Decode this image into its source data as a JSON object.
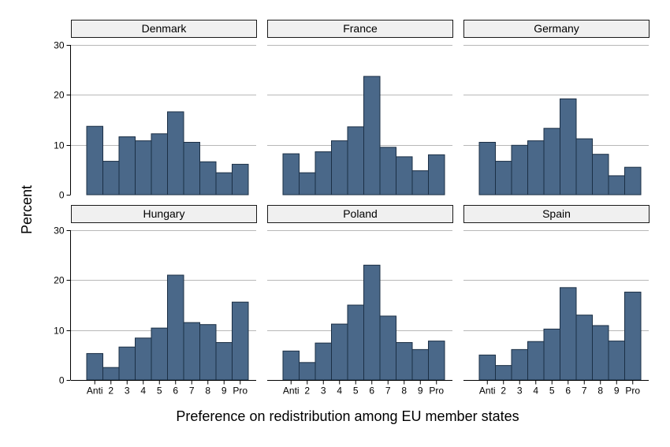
{
  "chart_data": {
    "type": "bar",
    "layout": "small-multiples 3x2",
    "xlabel": "Preference on redistribution among EU member states",
    "ylabel": "Percent",
    "categories": [
      "Anti",
      "2",
      "3",
      "4",
      "5",
      "6",
      "7",
      "8",
      "9",
      "Pro"
    ],
    "ylim": [
      0,
      30
    ],
    "yticks": [
      0,
      10,
      20,
      30
    ],
    "grid": true,
    "bar_color": "#4a6889",
    "panels": [
      {
        "name": "Denmark",
        "values": [
          13.7,
          6.7,
          11.6,
          10.8,
          12.2,
          16.6,
          10.5,
          6.6,
          4.4,
          6.1
        ]
      },
      {
        "name": "France",
        "values": [
          8.2,
          4.4,
          8.6,
          10.8,
          13.6,
          23.7,
          9.5,
          7.6,
          4.8,
          8.0
        ]
      },
      {
        "name": "Germany",
        "values": [
          10.5,
          6.7,
          9.9,
          10.8,
          13.3,
          19.2,
          11.2,
          8.1,
          3.8,
          5.5
        ]
      },
      {
        "name": "Hungary",
        "values": [
          5.3,
          2.5,
          6.6,
          8.4,
          10.4,
          21.0,
          11.5,
          11.1,
          7.5,
          15.6
        ]
      },
      {
        "name": "Poland",
        "values": [
          5.8,
          3.5,
          7.4,
          11.2,
          15.0,
          23.0,
          12.8,
          7.5,
          6.1,
          7.8
        ]
      },
      {
        "name": "Spain",
        "values": [
          5.0,
          2.9,
          6.1,
          7.7,
          10.2,
          18.5,
          13.0,
          10.9,
          7.8,
          17.6
        ]
      }
    ]
  }
}
